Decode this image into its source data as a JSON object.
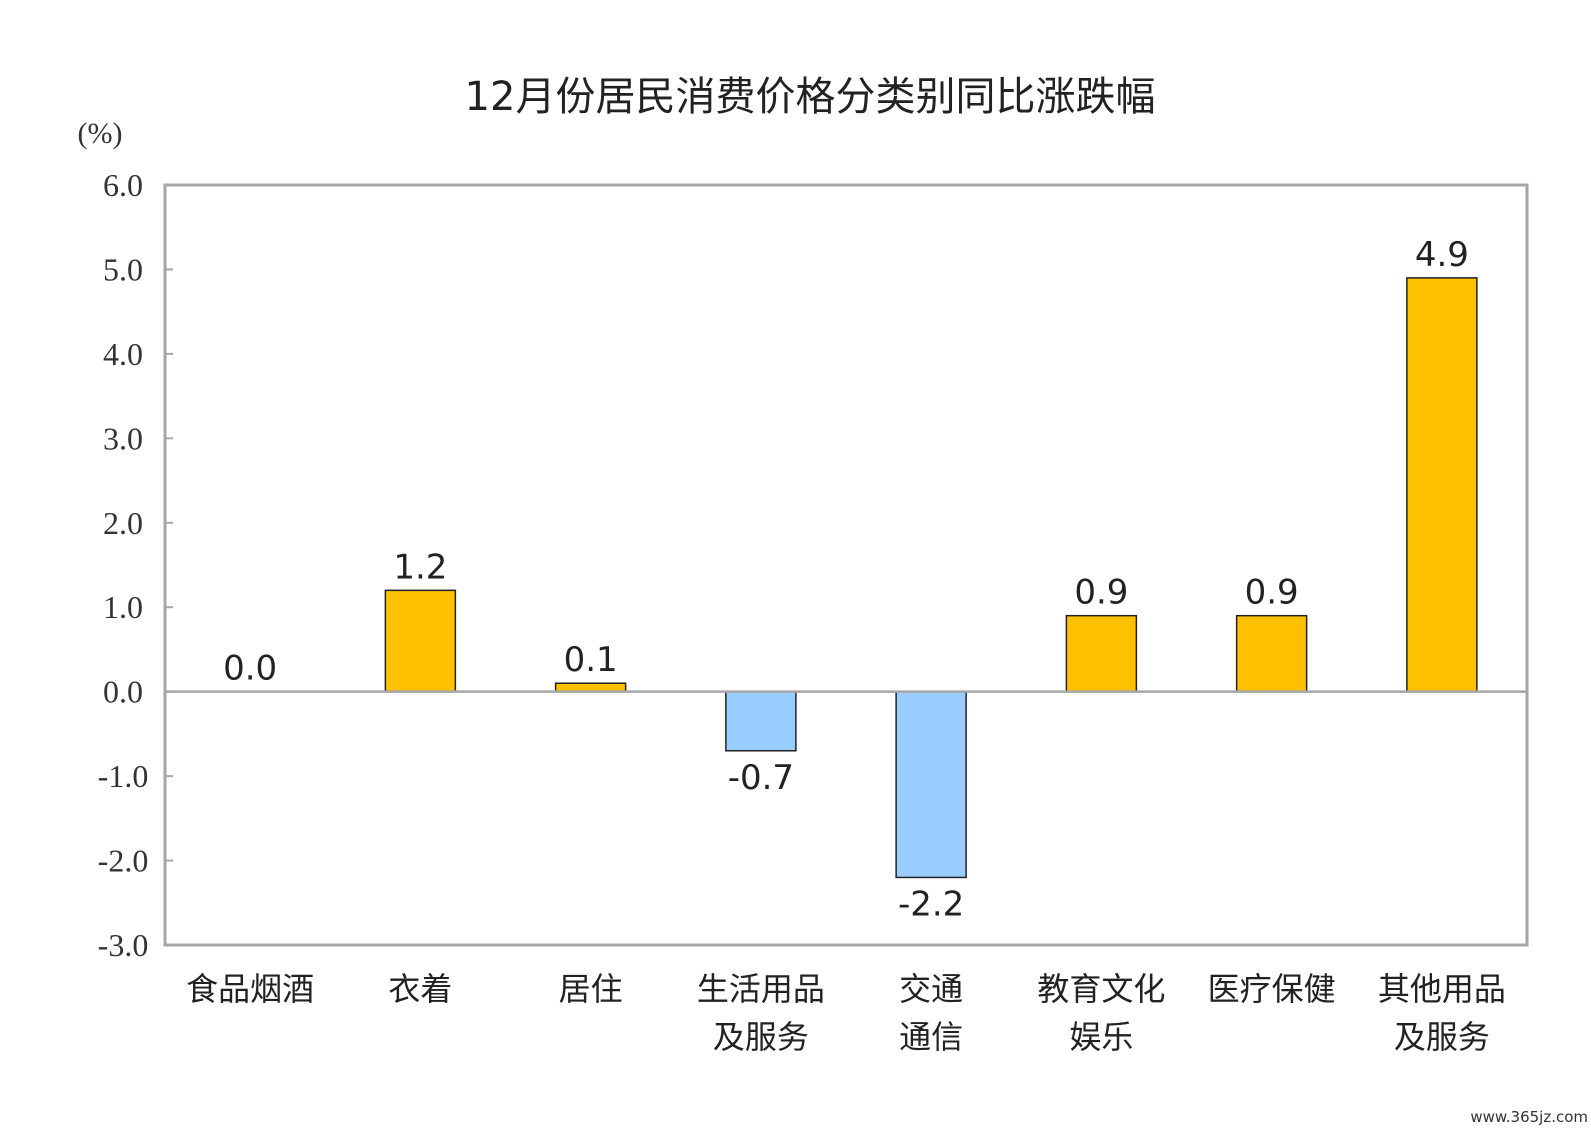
{
  "chart_data": {
    "type": "bar",
    "title": "12月份居民消费价格分类别同比涨跌幅",
    "unit": "(%)",
    "ylim": [
      -3.0,
      6.0
    ],
    "yticks": [
      "6.0",
      "5.0",
      "4.0",
      "3.0",
      "2.0",
      "1.0",
      "0.0",
      "-1.0",
      "-2.0",
      "-3.0"
    ],
    "categories": [
      [
        "食品烟酒"
      ],
      [
        "衣着"
      ],
      [
        "居住"
      ],
      [
        "生活用品",
        "及服务"
      ],
      [
        "交通",
        "通信"
      ],
      [
        "教育文化",
        "娱乐"
      ],
      [
        "医疗保健"
      ],
      [
        "其他用品",
        "及服务"
      ]
    ],
    "values": [
      0.0,
      1.2,
      0.1,
      -0.7,
      -2.2,
      0.9,
      0.9,
      4.9
    ],
    "value_labels": [
      "0.0",
      "1.2",
      "0.1",
      "-0.7",
      "-2.2",
      "0.9",
      "0.9",
      "4.9"
    ],
    "grid": false,
    "colors": {
      "positive": "#FFC000",
      "negative": "#99CCFF",
      "bar_border": "#222222",
      "frame": "#A6A6A6"
    }
  },
  "watermark": "www.365jz.com"
}
